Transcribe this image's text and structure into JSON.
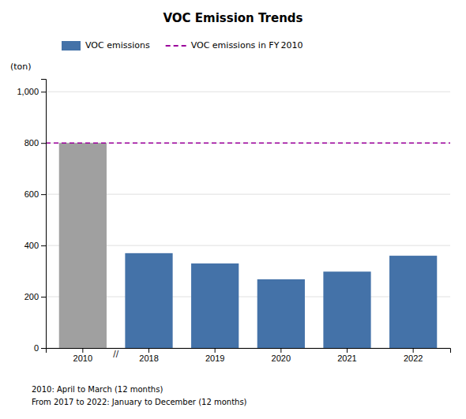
{
  "chart_data": {
    "type": "bar",
    "title": "VOC Emission Trends",
    "y_label": "(ton)",
    "categories": [
      "2010",
      "2018",
      "2019",
      "2020",
      "2021",
      "2022"
    ],
    "series": [
      {
        "name": "VOC emissions",
        "color": "#4472a8",
        "colors": [
          "#a0a0a0",
          "#4472a8",
          "#4472a8",
          "#4472a8",
          "#4472a8",
          "#4472a8"
        ],
        "values": [
          800,
          370,
          330,
          268,
          298,
          360
        ]
      }
    ],
    "reference_line": {
      "name": "VOC emissions in FY 2010",
      "value": 800,
      "color": "#9b009b",
      "line_style": "dashed"
    },
    "ylim": [
      0,
      1050
    ],
    "yticks": [
      0,
      200,
      400,
      600,
      800,
      {
        "value": 1000,
        "label": "1,000"
      }
    ],
    "grid": true,
    "legend": "top",
    "x_break_label": "//",
    "annotations": [
      "2010: April to March (12 months)",
      "From 2017 to 2022: January to December (12 months)"
    ]
  }
}
